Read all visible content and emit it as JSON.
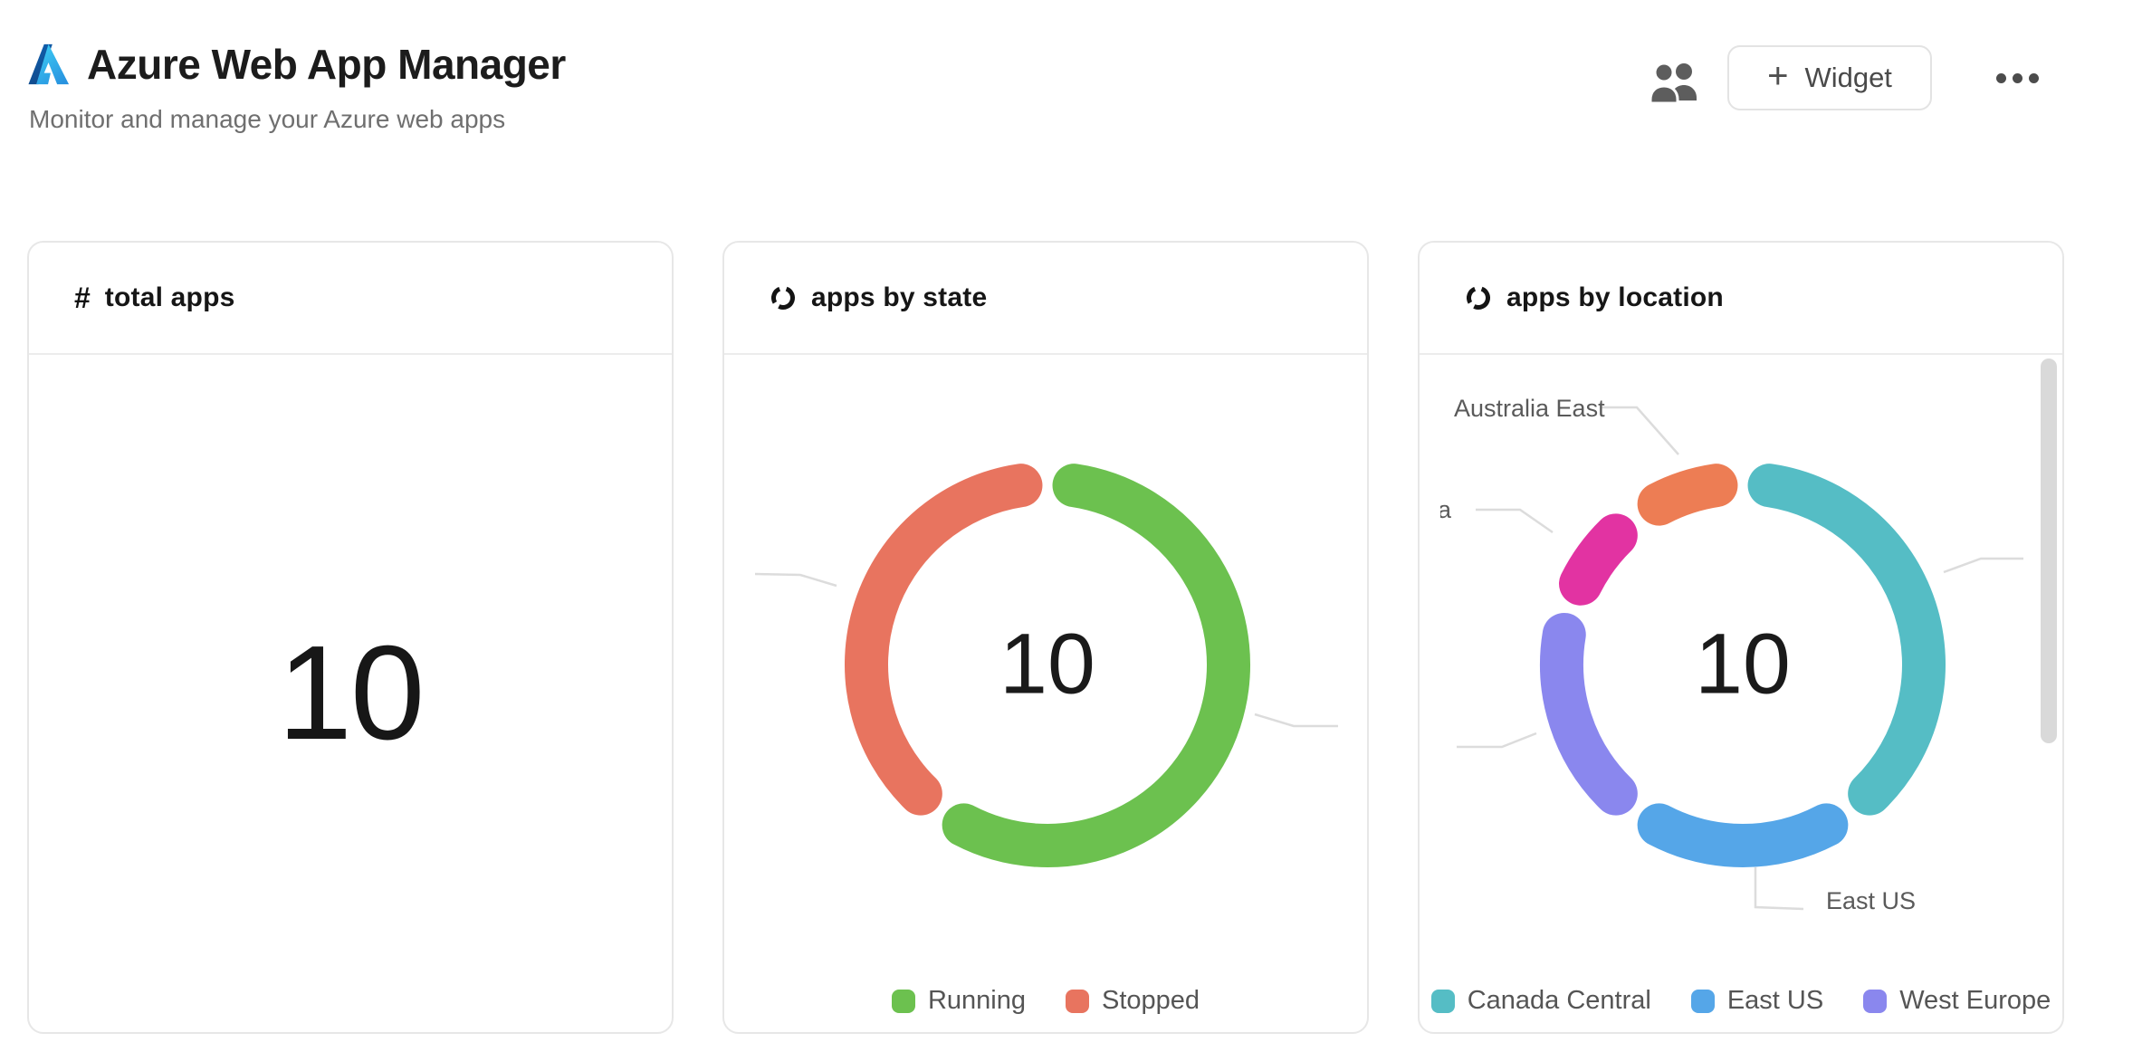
{
  "header": {
    "title": "Azure Web App Manager",
    "subtitle": "Monitor and manage your Azure web apps",
    "actions": {
      "people_icon": "people-icon",
      "widget_button": {
        "plus": "+",
        "label": "Widget"
      },
      "more_menu_icon": "ellipsis-icon"
    }
  },
  "cards": {
    "total_apps": {
      "icon": "hash-icon",
      "icon_glyph": "#",
      "title": "total apps",
      "value": "10"
    },
    "apps_by_state": {
      "icon": "donut-chart-icon",
      "title": "apps by state"
    },
    "apps_by_location": {
      "icon": "donut-chart-icon",
      "title": "apps by location"
    }
  },
  "chart_data": [
    {
      "type": "pie",
      "subtype": "donut",
      "title": "apps by state",
      "center_label": "10",
      "total": 10,
      "start_angle_deg": 0,
      "legend_position": "bottom",
      "legend": [
        "Running",
        "Stopped"
      ],
      "series": [
        {
          "label": "Running",
          "value": 6,
          "color": "#6CC14F",
          "in_legend": true
        },
        {
          "label": "Stopped",
          "value": 4,
          "color": "#E8745F",
          "in_legend": true
        }
      ]
    },
    {
      "type": "pie",
      "subtype": "donut",
      "title": "apps by location",
      "center_label": "10",
      "total": 10,
      "start_angle_deg": 0,
      "legend_position": "bottom",
      "legend": [
        "Canada Central",
        "East US",
        "West Europe"
      ],
      "series": [
        {
          "label": "Canada Central",
          "value": 4,
          "color": "#55BDC5",
          "in_legend": true
        },
        {
          "label": "East US",
          "value": 2,
          "color": "#55A6E8",
          "in_legend": true
        },
        {
          "label": "West Europe",
          "value": 2,
          "color": "#8A87EE",
          "in_legend": true
        },
        {
          "label": "",
          "label_partial": "a",
          "value": 1,
          "color": "#E233A2",
          "in_legend": false
        },
        {
          "label": "Australia East",
          "value": 1,
          "color": "#ED7D54",
          "in_legend": false
        }
      ]
    }
  ],
  "colors": {
    "text_primary": "#1c1c1c",
    "text_secondary": "#6f6f6f",
    "legend_text": "#555555",
    "callout_text": "#5a5a5a",
    "card_border": "#e7e7e7",
    "divider": "#ececec",
    "leader_line": "#dcdcdc",
    "scrollbar_thumb": "#d9d9d9",
    "icon_gray": "#5d5d5d",
    "azure_blue_dark": "#114A8B",
    "azure_blue": "#0669BC",
    "azure_blue_light": "#3CCBF4"
  }
}
